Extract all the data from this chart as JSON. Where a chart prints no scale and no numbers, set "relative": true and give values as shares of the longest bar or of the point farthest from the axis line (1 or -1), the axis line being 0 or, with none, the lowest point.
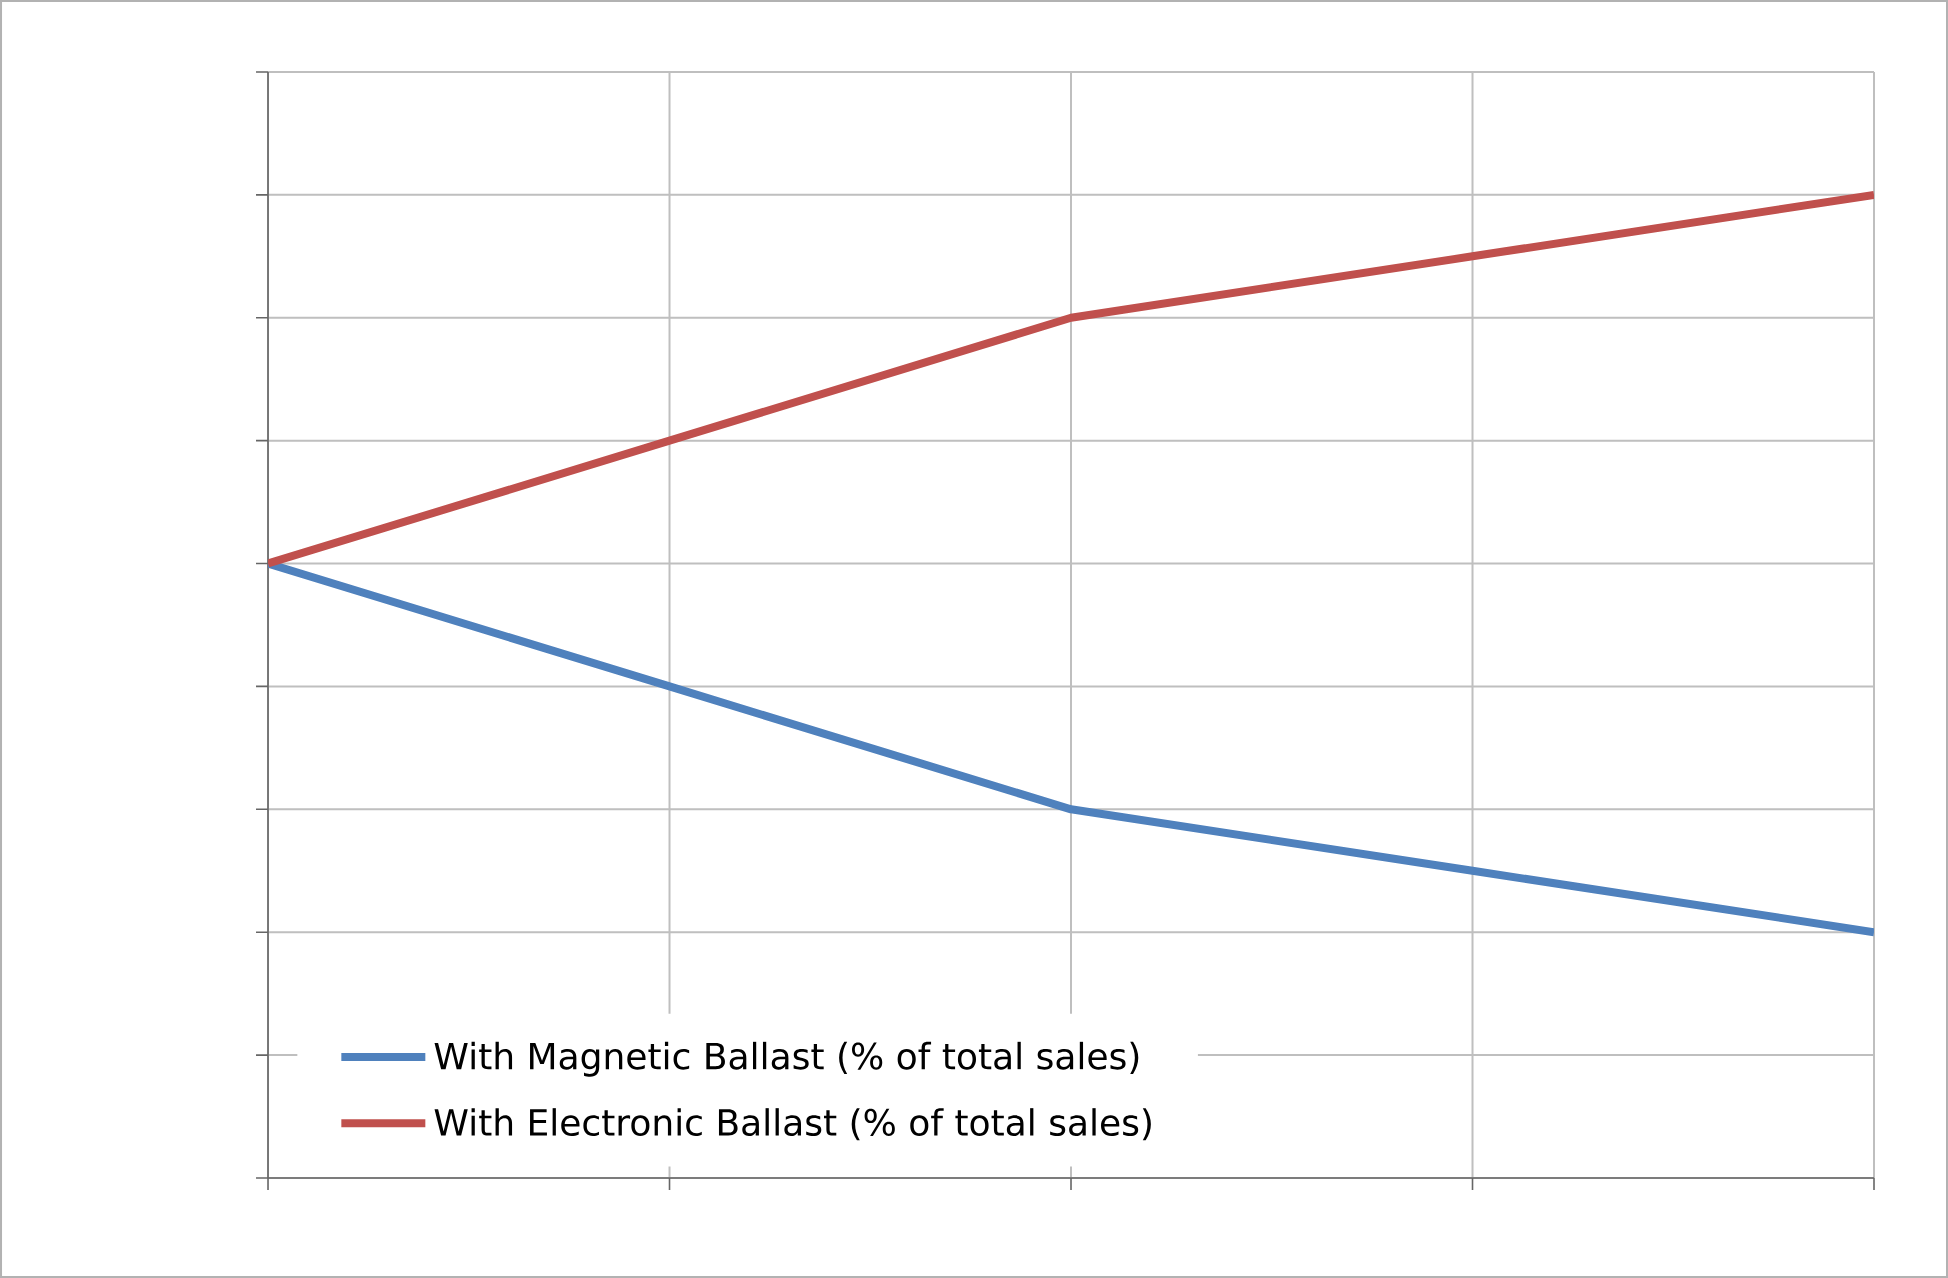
{
  "chart_data": {
    "type": "line",
    "relative": true,
    "categories": [
      null,
      null,
      null,
      null,
      null
    ],
    "series": [
      {
        "name": "With Magnetic Ballast (% of total sales)",
        "color": "#4f81bd",
        "values": [
          0.625,
          0.5,
          0.375,
          0.3125,
          0.25
        ]
      },
      {
        "name": "With Electronic Ballast (% of total sales)",
        "color": "#c0504d",
        "values": [
          0.625,
          0.75,
          0.875,
          0.9375,
          1
        ]
      }
    ],
    "grid": true,
    "legend": "bottom left"
  }
}
